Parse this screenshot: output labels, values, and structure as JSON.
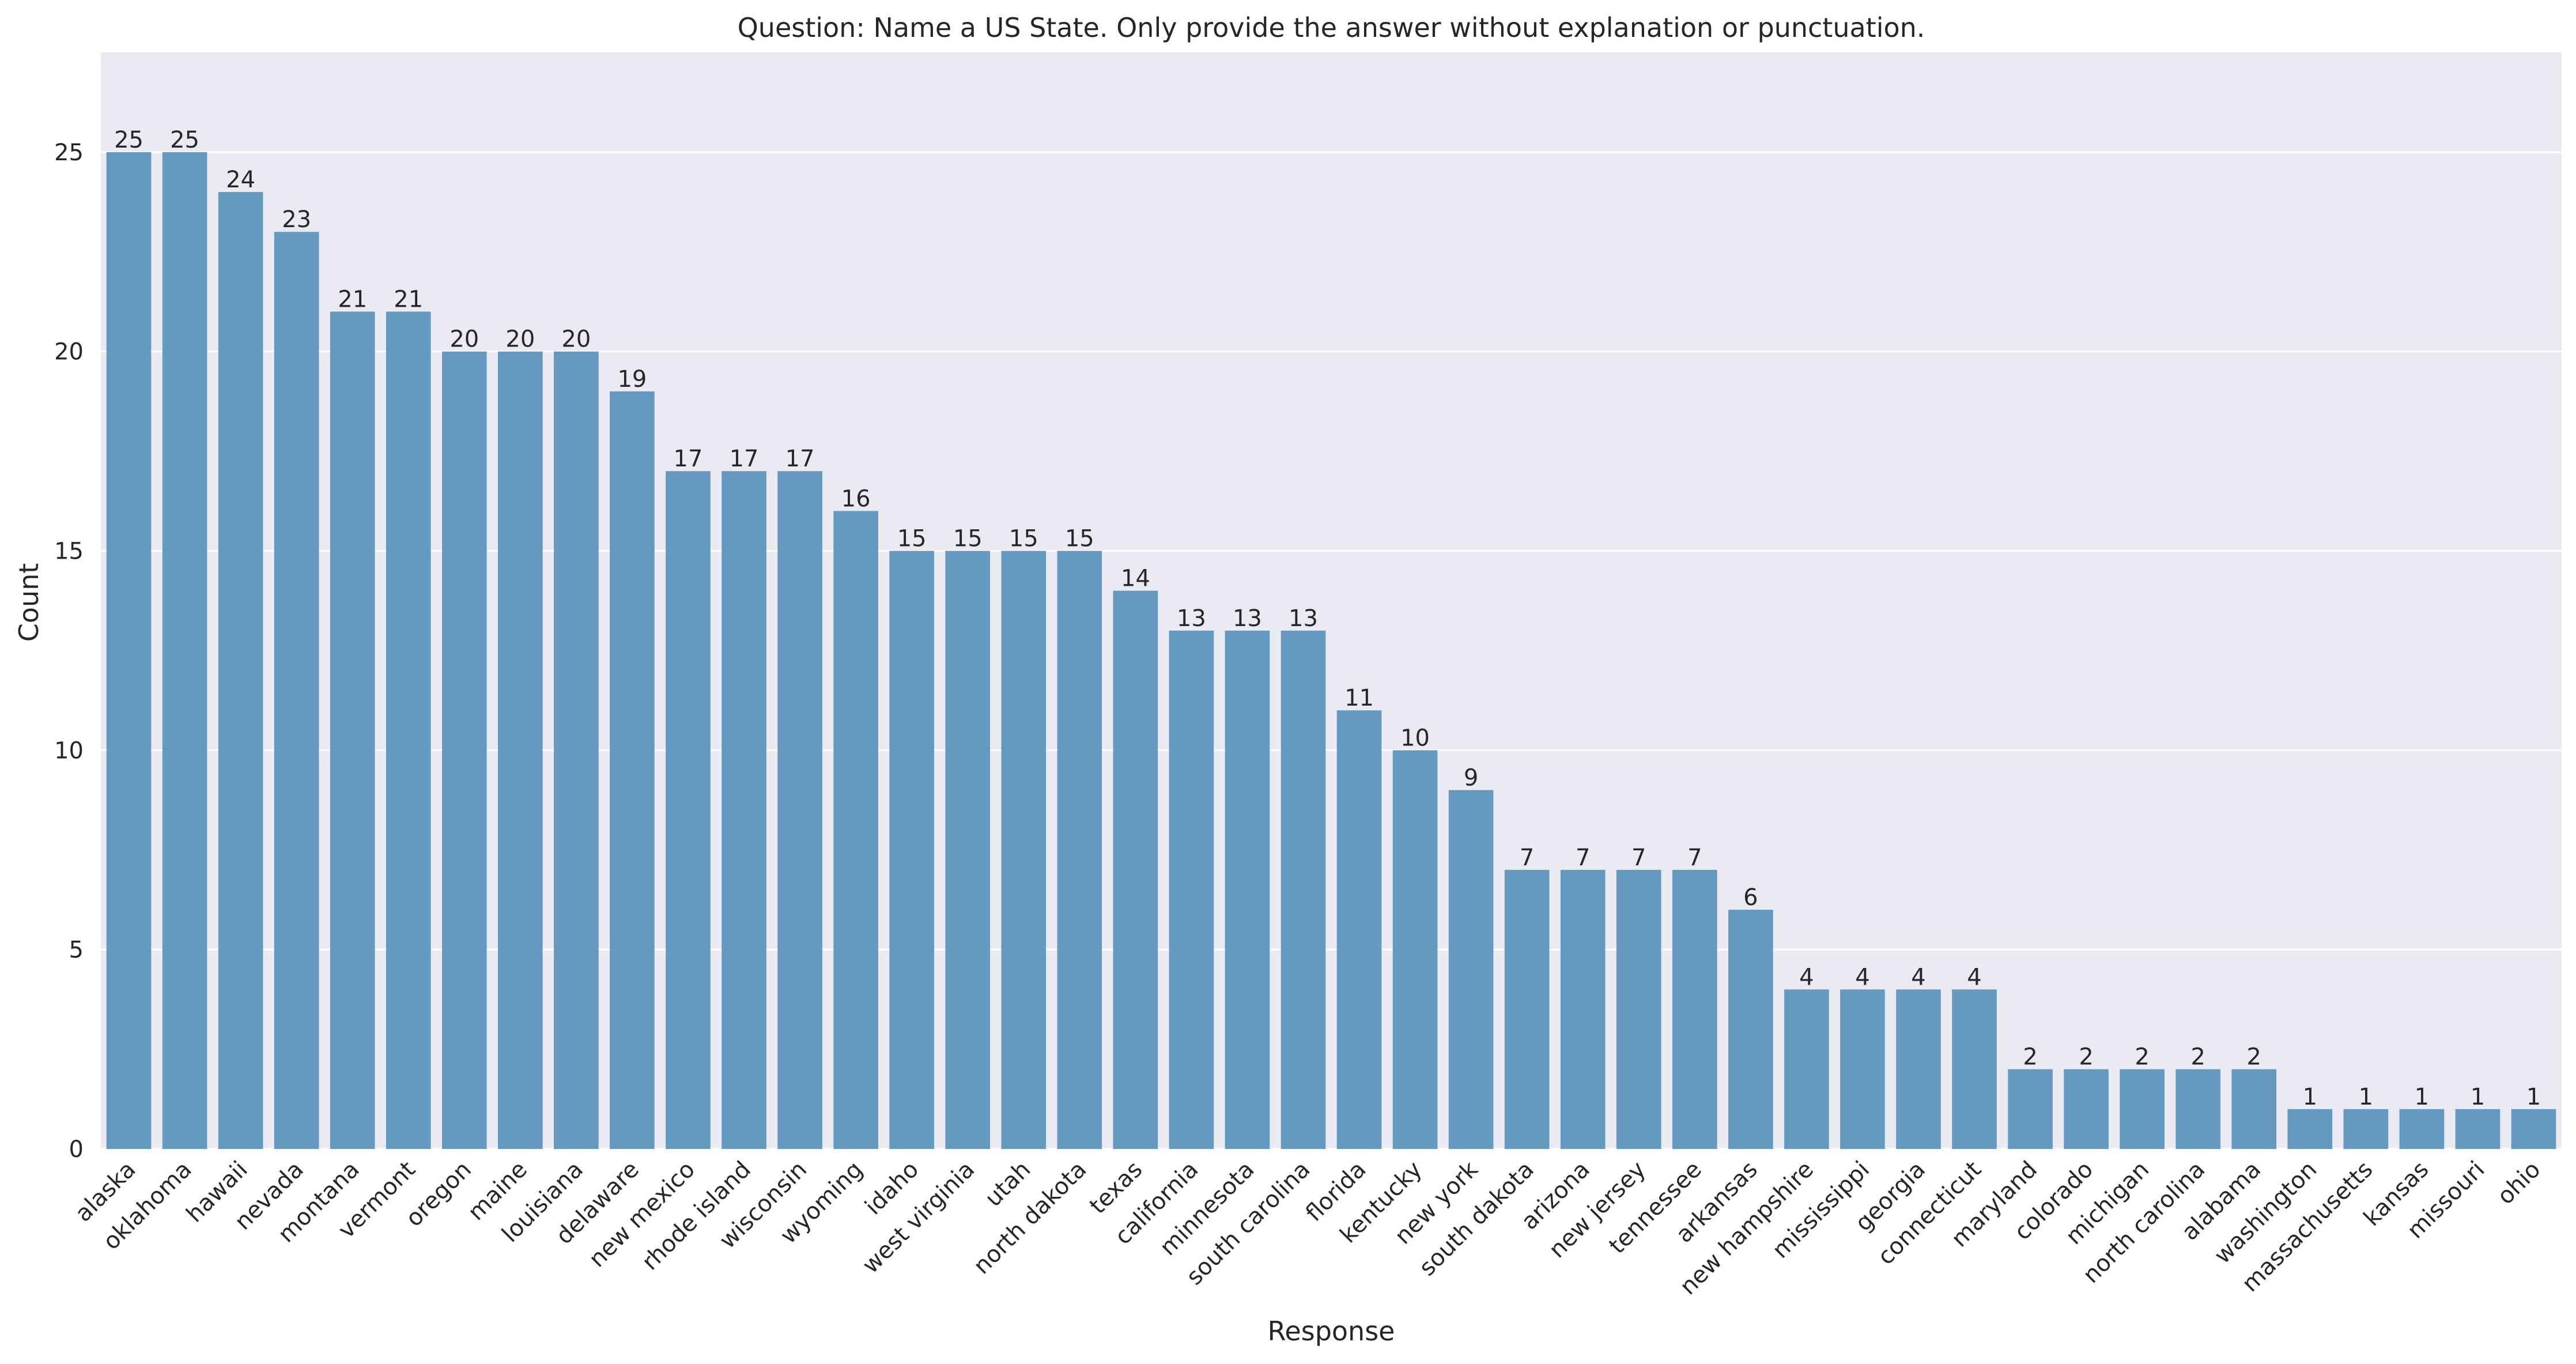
{
  "colors": {
    "plot_background": "#EAEAF2",
    "grid": "#FFFFFF",
    "bar": "#6699BF",
    "text": "#262626"
  },
  "chart_data": {
    "type": "bar",
    "title": "Question: Name a US State. Only provide the answer without explanation or punctuation.",
    "xlabel": "Response",
    "ylabel": "Count",
    "ylim": [
      0,
      27.5
    ],
    "yticks": [
      0,
      5,
      10,
      15,
      20,
      25
    ],
    "grid": true,
    "categories": [
      "alaska",
      "oklahoma",
      "hawaii",
      "nevada",
      "montana",
      "vermont",
      "oregon",
      "maine",
      "louisiana",
      "delaware",
      "new mexico",
      "rhode island",
      "wisconsin",
      "wyoming",
      "idaho",
      "west virginia",
      "utah",
      "north dakota",
      "texas",
      "california",
      "minnesota",
      "south carolina",
      "florida",
      "kentucky",
      "new york",
      "south dakota",
      "arizona",
      "new jersey",
      "tennessee",
      "arkansas",
      "new hampshire",
      "mississippi",
      "georgia",
      "connecticut",
      "maryland",
      "colorado",
      "michigan",
      "north carolina",
      "alabama",
      "washington",
      "massachusetts",
      "kansas",
      "missouri",
      "ohio"
    ],
    "values": [
      25,
      25,
      24,
      23,
      21,
      21,
      20,
      20,
      20,
      19,
      17,
      17,
      17,
      16,
      15,
      15,
      15,
      15,
      14,
      13,
      13,
      13,
      11,
      10,
      9,
      7,
      7,
      7,
      7,
      6,
      4,
      4,
      4,
      4,
      2,
      2,
      2,
      2,
      2,
      1,
      1,
      1,
      1,
      1
    ]
  }
}
